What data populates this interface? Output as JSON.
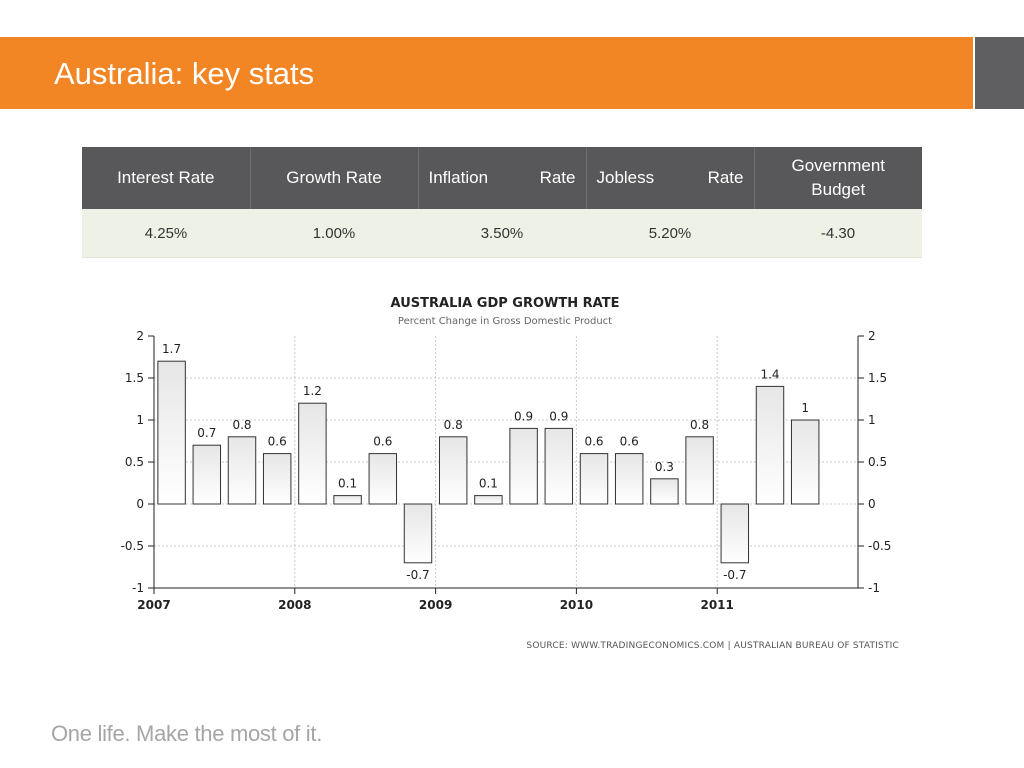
{
  "slide": {
    "title": "Australia: key stats",
    "slogan": "One life. Make the most of it."
  },
  "stats_table": {
    "headers": [
      {
        "left": "Interest Rate"
      },
      {
        "left": "Growth Rate"
      },
      {
        "left": "Inflation",
        "right": "Rate"
      },
      {
        "left": "Jobless",
        "right": "Rate"
      },
      {
        "line1": "Government",
        "line2": "Budget"
      }
    ],
    "values": [
      "4.25%",
      "1.00%",
      "3.50%",
      "5.20%",
      "-4.30"
    ]
  },
  "chart_data": {
    "type": "bar",
    "title": "AUSTRALIA GDP GROWTH RATE",
    "subtitle": "Percent Change in Gross Domestic Product",
    "source": "SOURCE: WWW.TRADINGECONOMICS.COM | AUSTRALIAN BUREAU OF STATISTIC",
    "x": [
      2007.25,
      2007.5,
      2007.75,
      2008.0,
      2008.25,
      2008.5,
      2008.75,
      2009.0,
      2009.25,
      2009.5,
      2009.75,
      2010.0,
      2010.25,
      2010.5,
      2010.75,
      2011.0,
      2011.25,
      2011.5,
      2011.75
    ],
    "values": [
      1.7,
      0.7,
      0.8,
      0.6,
      1.2,
      0.1,
      0.6,
      -0.7,
      0.8,
      0.1,
      0.9,
      0.9,
      0.6,
      0.6,
      0.3,
      0.8,
      -0.7,
      1.4,
      1
    ],
    "value_labels": [
      "1.7",
      "0.7",
      "0.8",
      "0.6",
      "1.2",
      "0.1",
      "0.6",
      "-0.7",
      "0.8",
      "0.1",
      "0.9",
      "0.9",
      "0.6",
      "0.6",
      "0.3",
      "0.8",
      "-0.7",
      "1.4",
      "1"
    ],
    "xlim": [
      2007,
      2012
    ],
    "ylim": [
      -1,
      2
    ],
    "x_ticks": [
      "2007",
      "2008",
      "2009",
      "2010",
      "2011"
    ],
    "y_ticks": [
      "2",
      "1.5",
      "1",
      "0.5",
      "0",
      "-0.5",
      "-1"
    ],
    "grid": true,
    "dual_y_axis": true,
    "colors": {
      "bar_top": "#e6e6e6",
      "bar_bottom": "#ffffff",
      "bar_stroke": "#333333",
      "grid": "#c8c8c8",
      "title": "#222222",
      "subtitle": "#666666"
    }
  },
  "colors": {
    "title_bar": "#f28524",
    "title_accent": "#5f5f61",
    "table_header": "#58585a",
    "table_row": "#eef2e6",
    "slogan": "#a5a5a5"
  }
}
